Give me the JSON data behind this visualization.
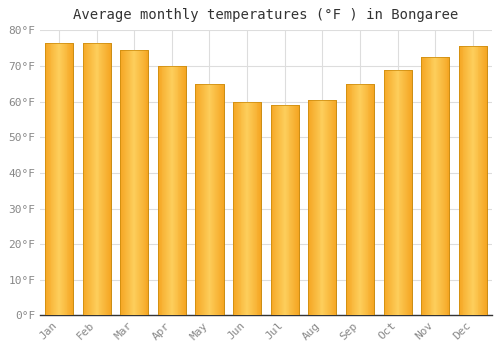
{
  "title": "Average monthly temperatures (°F ) in Bongaree",
  "months": [
    "Jan",
    "Feb",
    "Mar",
    "Apr",
    "May",
    "Jun",
    "Jul",
    "Aug",
    "Sep",
    "Oct",
    "Nov",
    "Dec"
  ],
  "values": [
    76.5,
    76.5,
    74.5,
    70.0,
    65.0,
    60.0,
    59.0,
    60.5,
    65.0,
    69.0,
    72.5,
    75.5
  ],
  "bar_color_left": "#F5A623",
  "bar_color_center": "#FDD067",
  "bar_color_right": "#F5A623",
  "bar_edge_color": "#C8880A",
  "background_color": "#FFFFFF",
  "grid_color": "#DDDDDD",
  "ylim": [
    0,
    80
  ],
  "ytick_step": 10,
  "title_fontsize": 10,
  "tick_fontsize": 8,
  "tick_color": "#888888",
  "spine_color": "#333333"
}
